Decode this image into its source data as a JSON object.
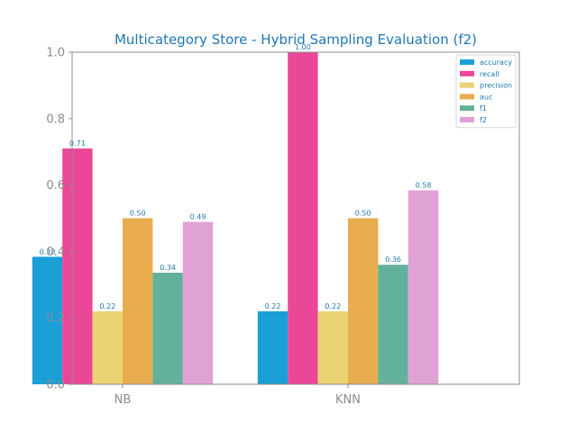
{
  "chart_data": {
    "type": "bar",
    "title": "Multicategory Store - Hybrid Sampling Evaluation (f2)",
    "xlabel": "",
    "ylabel": "",
    "categories": [
      "NB",
      "KNN"
    ],
    "ylim": [
      0,
      1.0
    ],
    "yticks": [
      "0.0",
      "0.2",
      "0.4",
      "0.6",
      "0.8",
      "1.0"
    ],
    "grid": false,
    "legend_position": "top-right",
    "series": [
      {
        "name": "accuracy",
        "color": "#1a9fd6",
        "values": [
          0.384,
          0.22
        ],
        "labels": [
          "0.38",
          "0.22"
        ]
      },
      {
        "name": "recall",
        "color": "#ea4799",
        "values": [
          0.71,
          1.0
        ],
        "labels": [
          "0.71",
          "1.00"
        ]
      },
      {
        "name": "precision",
        "color": "#ebd374",
        "values": [
          0.22,
          0.22
        ],
        "labels": [
          "0.22",
          "0.22"
        ]
      },
      {
        "name": "auc",
        "color": "#e8ad4e",
        "values": [
          0.5,
          0.5
        ],
        "labels": [
          "0.50",
          "0.50"
        ]
      },
      {
        "name": "f1",
        "color": "#64b19b",
        "values": [
          0.336,
          0.36
        ],
        "labels": [
          "0.34",
          "0.36"
        ]
      },
      {
        "name": "f2",
        "color": "#e0a1d4",
        "values": [
          0.489,
          0.584
        ],
        "labels": [
          "0.49",
          "0.58"
        ]
      }
    ]
  }
}
